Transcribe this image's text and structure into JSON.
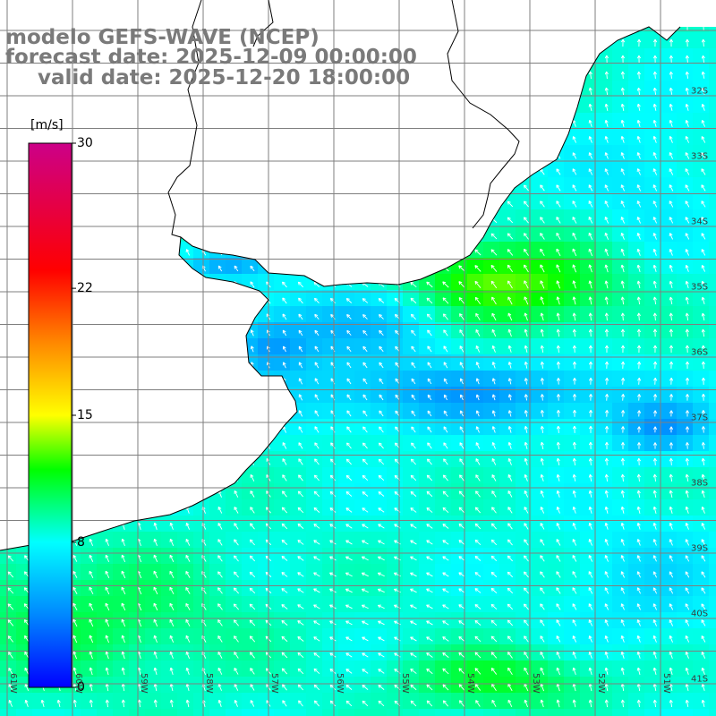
{
  "header": {
    "model_line": "modelo GEFS-WAVE (NCEP)",
    "forecast_line": "forecast date: 2025-12-09 00:00:00",
    "valid_line": "valid date: 2025-12-20 18:00:00"
  },
  "colorbar": {
    "unit": "[m/s]",
    "min": 0,
    "max": 30,
    "ticks": [
      {
        "value": 30,
        "label": "30"
      },
      {
        "value": 22,
        "label": "22"
      },
      {
        "value": 15,
        "label": "15"
      },
      {
        "value": 8,
        "label": "8"
      },
      {
        "value": 0,
        "label": "0"
      }
    ],
    "color_stops": [
      {
        "value": 0,
        "color": "#0000ff"
      },
      {
        "value": 4,
        "color": "#0088ff"
      },
      {
        "value": 8,
        "color": "#00ffff"
      },
      {
        "value": 12,
        "color": "#00ff00"
      },
      {
        "value": 15,
        "color": "#ffff00"
      },
      {
        "value": 19,
        "color": "#ff8800"
      },
      {
        "value": 23,
        "color": "#ff0000"
      },
      {
        "value": 30,
        "color": "#cc0088"
      }
    ]
  },
  "map": {
    "land_color": "#ffffff",
    "coast_color": "#000000",
    "grid_color": "#7f7f7f",
    "arrow_color": "#ffffff",
    "lat_labels": [
      "32S",
      "33S",
      "34S",
      "35S",
      "36S",
      "37S",
      "38S",
      "39S",
      "40S",
      "41S"
    ],
    "lon_labels": [
      "61W",
      "60W",
      "59W",
      "58W",
      "57W",
      "56W",
      "55W",
      "54W",
      "53W",
      "52W",
      "51W"
    ]
  }
}
